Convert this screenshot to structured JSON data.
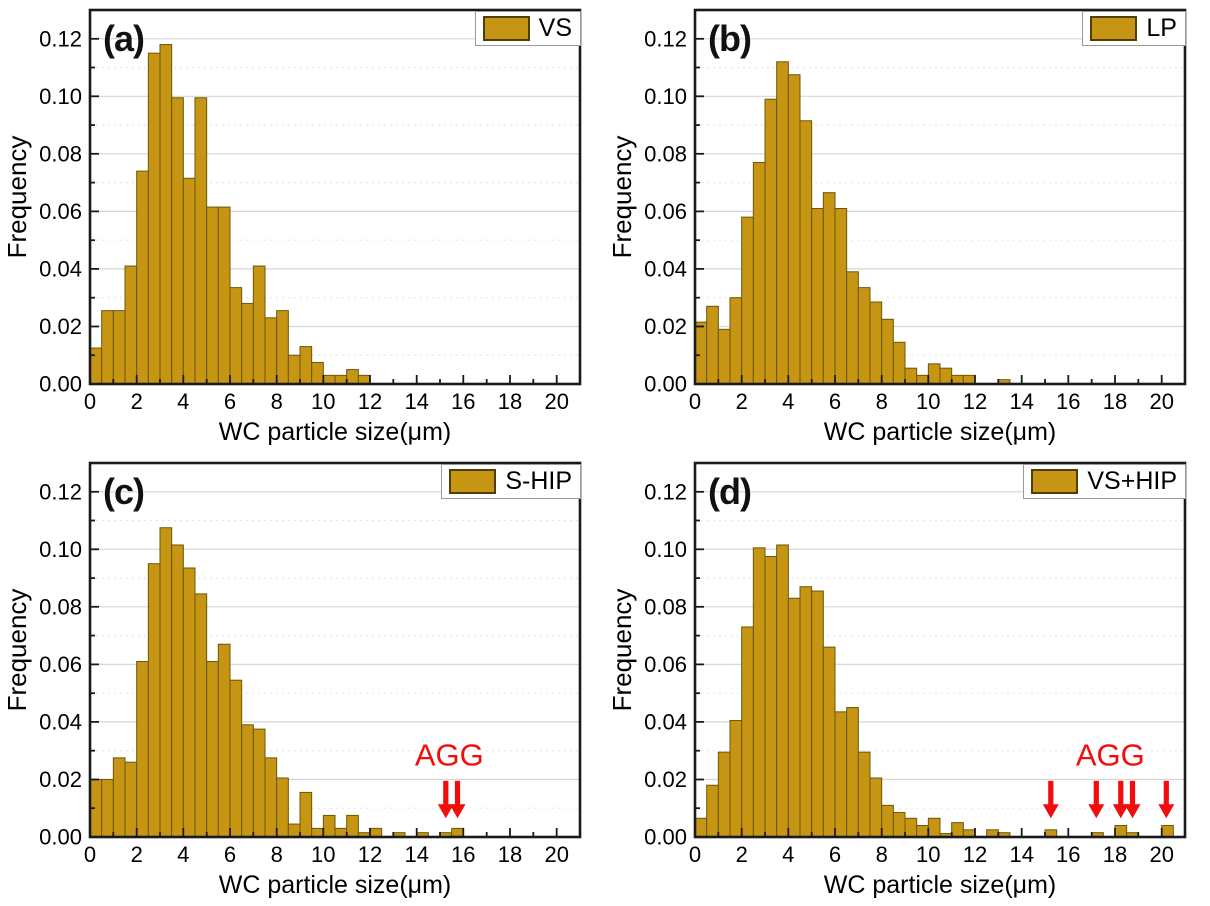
{
  "figure": {
    "background": "#ffffff",
    "bar_fill": "#C79514",
    "bar_edge": "#6B5707",
    "frame_color": "#1a1a1a",
    "grid_major_color": "#d6d6d6",
    "grid_minor_color": "#e6e6e6",
    "annotation_color": "#f20d0d",
    "text_color": "#000000"
  },
  "chart_data": [
    {
      "type": "bar",
      "panel_label": "(a)",
      "legend": "VS",
      "xlabel": "WC particle size(μm)",
      "ylabel": "Frequency",
      "xlim": [
        0,
        21
      ],
      "ylim": [
        0,
        0.13
      ],
      "xticks": [
        0,
        2,
        4,
        6,
        8,
        10,
        12,
        14,
        16,
        18,
        20
      ],
      "yticks": [
        0.0,
        0.02,
        0.04,
        0.06,
        0.08,
        0.1,
        0.12
      ],
      "grid": "horizontal",
      "legend_position": "top-right",
      "bin_start": 0,
      "bin_width": 0.5,
      "frequencies": [
        0.0125,
        0.0255,
        0.0255,
        0.041,
        0.074,
        0.115,
        0.118,
        0.0995,
        0.0715,
        0.0995,
        0.0615,
        0.0615,
        0.0335,
        0.028,
        0.041,
        0.023,
        0.0255,
        0.01,
        0.013,
        0.0075,
        0.003,
        0.003,
        0.005,
        0.003
      ],
      "annotation": null
    },
    {
      "type": "bar",
      "panel_label": "(b)",
      "legend": "LP",
      "xlabel": "WC particle size(μm)",
      "ylabel": "Frequency",
      "xlim": [
        0,
        21
      ],
      "ylim": [
        0,
        0.13
      ],
      "xticks": [
        0,
        2,
        4,
        6,
        8,
        10,
        12,
        14,
        16,
        18,
        20
      ],
      "yticks": [
        0.0,
        0.02,
        0.04,
        0.06,
        0.08,
        0.1,
        0.12
      ],
      "grid": "horizontal",
      "legend_position": "top-right",
      "bin_start": 0,
      "bin_width": 0.5,
      "frequencies": [
        0.0215,
        0.027,
        0.019,
        0.03,
        0.058,
        0.077,
        0.099,
        0.112,
        0.1075,
        0.0915,
        0.061,
        0.0665,
        0.061,
        0.039,
        0.0335,
        0.0285,
        0.0225,
        0.0145,
        0.0055,
        0.003,
        0.007,
        0.0055,
        0.003,
        0.003,
        0,
        0,
        0.0015
      ],
      "annotation": null
    },
    {
      "type": "bar",
      "panel_label": "(c)",
      "legend": "S-HIP",
      "xlabel": "WC particle size(μm)",
      "ylabel": "Frequency",
      "xlim": [
        0,
        21
      ],
      "ylim": [
        0,
        0.13
      ],
      "xticks": [
        0,
        2,
        4,
        6,
        8,
        10,
        12,
        14,
        16,
        18,
        20
      ],
      "yticks": [
        0.0,
        0.02,
        0.04,
        0.06,
        0.08,
        0.1,
        0.12
      ],
      "grid": "horizontal",
      "legend_position": "top-right",
      "bin_start": 0,
      "bin_width": 0.5,
      "frequencies": [
        0.02,
        0.02,
        0.0275,
        0.026,
        0.061,
        0.095,
        0.1075,
        0.1015,
        0.0935,
        0.0845,
        0.061,
        0.067,
        0.0545,
        0.039,
        0.0375,
        0.0275,
        0.0205,
        0.0045,
        0.0155,
        0.003,
        0.0075,
        0.003,
        0.0075,
        0.0015,
        0.003,
        0,
        0.0015,
        0,
        0.0015,
        0,
        0.0015,
        0.003
      ],
      "annotation": {
        "text": "AGG",
        "text_x": 15.4,
        "text_y": 0.0285,
        "arrows_x": [
          15.25,
          15.75
        ],
        "arrow_from_y": 0.0195,
        "arrow_to_y": 0.0065
      }
    },
    {
      "type": "bar",
      "panel_label": "(d)",
      "legend": "VS+HIP",
      "xlabel": "WC particle size(μm)",
      "ylabel": "Frequency",
      "xlim": [
        0,
        21
      ],
      "ylim": [
        0,
        0.13
      ],
      "xticks": [
        0,
        2,
        4,
        6,
        8,
        10,
        12,
        14,
        16,
        18,
        20
      ],
      "yticks": [
        0.0,
        0.02,
        0.04,
        0.06,
        0.08,
        0.1,
        0.12
      ],
      "grid": "horizontal",
      "legend_position": "top-right",
      "bin_start": 0,
      "bin_width": 0.5,
      "frequencies": [
        0.0065,
        0.018,
        0.0295,
        0.0405,
        0.073,
        0.1005,
        0.0975,
        0.1015,
        0.083,
        0.087,
        0.0855,
        0.066,
        0.0435,
        0.045,
        0.0295,
        0.0205,
        0.011,
        0.0085,
        0.0065,
        0.004,
        0.0065,
        0.0012,
        0.005,
        0.0025,
        0,
        0.0025,
        0.0015,
        0,
        0,
        0,
        0.0025,
        0,
        0,
        0,
        0.0015,
        0,
        0.004,
        0.0015,
        0,
        0,
        0.004
      ],
      "annotation": {
        "text": "AGG",
        "text_x": 17.8,
        "text_y": 0.0285,
        "arrows_x": [
          15.25,
          17.2,
          18.25,
          18.75,
          20.2
        ],
        "arrow_from_y": 0.0195,
        "arrow_to_y": 0.0065
      }
    }
  ]
}
